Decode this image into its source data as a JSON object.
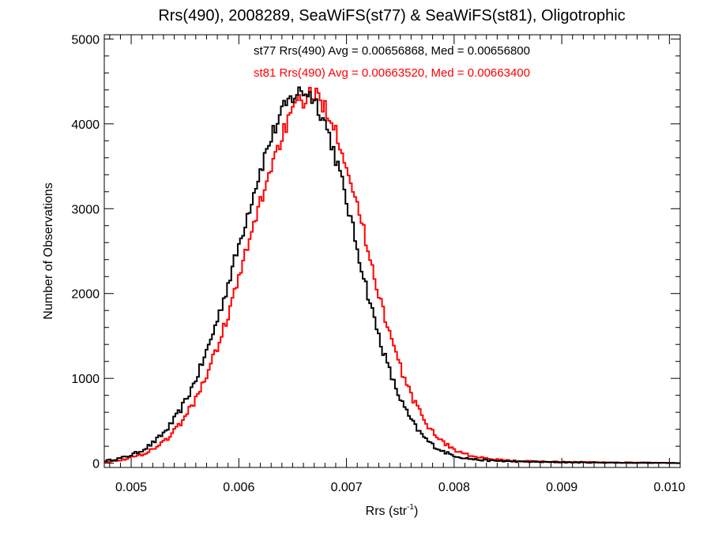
{
  "chart_data": {
    "type": "histogram-step",
    "title": "Rrs(490), 2008289, SeaWiFS(st77) & SeaWiFS(st81), Oligotrophic",
    "xlabel_main": "Rrs (str",
    "xlabel_sup": "-1",
    "xlabel_close": ")",
    "ylabel": "Number of Observations",
    "xlim": [
      0.00475,
      0.0101
    ],
    "ylim": [
      -50,
      5050
    ],
    "x_ticks": [
      {
        "value": 0.005,
        "label": "0.005"
      },
      {
        "value": 0.006,
        "label": "0.006"
      },
      {
        "value": 0.007,
        "label": "0.007"
      },
      {
        "value": 0.008,
        "label": "0.008"
      },
      {
        "value": 0.009,
        "label": "0.009"
      },
      {
        "value": 0.01,
        "label": "0.010"
      }
    ],
    "y_ticks": [
      {
        "value": 0,
        "label": "0"
      },
      {
        "value": 1000,
        "label": "1000"
      },
      {
        "value": 2000,
        "label": "2000"
      },
      {
        "value": 3000,
        "label": "3000"
      },
      {
        "value": 4000,
        "label": "4000"
      },
      {
        "value": 5000,
        "label": "5000"
      }
    ],
    "bin_width": 2e-05,
    "series": [
      {
        "name": "st77",
        "color": "#000000",
        "annotation": "st77 Rrs(490) Avg = 0.00656868, Med = 0.00656800",
        "mode": 0.0066,
        "peak": 4380,
        "sigma_left": 0.00058,
        "sigma_right": 0.00047,
        "tail_amp": 230,
        "tail_tau": 0.0008
      },
      {
        "name": "st81",
        "color": "#ff0000",
        "annotation": "st81 Rrs(490) Avg = 0.00663520, Med = 0.00663400",
        "mode": 0.00668,
        "peak": 4330,
        "sigma_left": 0.00058,
        "sigma_right": 0.00049,
        "tail_amp": 240,
        "tail_tau": 0.00085
      }
    ]
  }
}
